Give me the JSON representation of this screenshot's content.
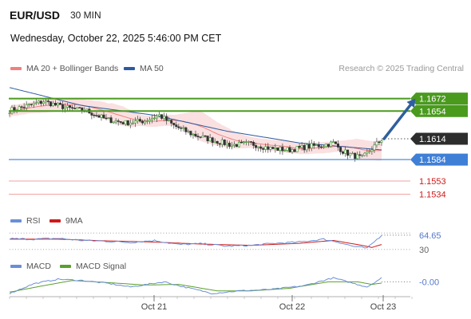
{
  "header": {
    "symbol": "EUR/USD",
    "timeframe": "30 MIN",
    "datetime": "Wednesday, October 22, 2025 5:46:00 PM CET",
    "credit": "Research © 2025 Trading Central"
  },
  "legend": {
    "bollinger": {
      "label": "MA 20 + Bollinger Bands",
      "color": "#f08080"
    },
    "ma50": {
      "label": "MA 50",
      "color": "#2c5aa0"
    },
    "rsi": {
      "label": "RSI",
      "color": "#6a8fd8"
    },
    "rsi_ma": {
      "label": "9MA",
      "color": "#d11919"
    },
    "macd": {
      "label": "MACD",
      "color": "#6a8fd8"
    },
    "macd_signal": {
      "label": "MACD Signal",
      "color": "#5aa02c"
    }
  },
  "colors": {
    "resistance": "#4a9a1e",
    "support": "#3f7fd6",
    "support_red": "#e05050",
    "arrow": "#2f5f9e",
    "current": "#2d2d2d"
  },
  "chart_data": [
    {
      "type": "candlestick",
      "x_ticks": [
        "Oct 21",
        "Oct 22",
        "Oct 23"
      ],
      "ylim": [
        1.1515,
        1.1705
      ],
      "levels": [
        {
          "label": "1.1672",
          "value": 1.1672,
          "kind": "resistance"
        },
        {
          "label": "1.1654",
          "value": 1.1654,
          "kind": "resistance"
        },
        {
          "label": "1.1614",
          "value": 1.1614,
          "kind": "current"
        },
        {
          "label": "1.1584",
          "value": 1.1584,
          "kind": "support"
        },
        {
          "label": "1.1553",
          "value": 1.1553,
          "kind": "support2"
        },
        {
          "label": "1.1534",
          "value": 1.1534,
          "kind": "support2"
        }
      ],
      "close_keypoints": [
        [
          0,
          1.1655
        ],
        [
          8,
          1.1662
        ],
        [
          14,
          1.1668
        ],
        [
          20,
          1.1662
        ],
        [
          26,
          1.1657
        ],
        [
          32,
          1.1654
        ],
        [
          40,
          1.1642
        ],
        [
          48,
          1.1637
        ],
        [
          56,
          1.164
        ],
        [
          62,
          1.1648
        ],
        [
          68,
          1.1633
        ],
        [
          76,
          1.162
        ],
        [
          84,
          1.1612
        ],
        [
          92,
          1.1605
        ],
        [
          100,
          1.1607
        ],
        [
          108,
          1.16
        ],
        [
          116,
          1.1598
        ],
        [
          124,
          1.1603
        ],
        [
          130,
          1.1605
        ],
        [
          134,
          1.1608
        ],
        [
          138,
          1.1596
        ],
        [
          142,
          1.159
        ],
        [
          146,
          1.1586
        ],
        [
          150,
          1.16
        ],
        [
          154,
          1.1613
        ]
      ],
      "ma50_keypoints": [
        [
          0,
          1.1688
        ],
        [
          30,
          1.1662
        ],
        [
          60,
          1.1648
        ],
        [
          90,
          1.1625
        ],
        [
          120,
          1.1608
        ],
        [
          154,
          1.1598
        ]
      ],
      "arrow": {
        "from": [
          155,
          1.1614
        ],
        "to": [
          168,
          1.1672
        ]
      }
    },
    {
      "type": "line",
      "name": "RSI",
      "ylim": [
        20,
        80
      ],
      "tick_labels": [
        {
          "label": "64.65",
          "value": 64.65
        },
        {
          "label": "30",
          "value": 30
        }
      ],
      "rsi_keypoints": [
        [
          0,
          56
        ],
        [
          10,
          55
        ],
        [
          20,
          57
        ],
        [
          30,
          52
        ],
        [
          40,
          50
        ],
        [
          50,
          47
        ],
        [
          60,
          52
        ],
        [
          70,
          42
        ],
        [
          80,
          44
        ],
        [
          90,
          38
        ],
        [
          100,
          40
        ],
        [
          110,
          45
        ],
        [
          120,
          48
        ],
        [
          130,
          55
        ],
        [
          136,
          48
        ],
        [
          142,
          38
        ],
        [
          148,
          33
        ],
        [
          154,
          64.65
        ]
      ],
      "ma_keypoints": [
        [
          0,
          55
        ],
        [
          20,
          55
        ],
        [
          40,
          51
        ],
        [
          60,
          48
        ],
        [
          80,
          43
        ],
        [
          100,
          40
        ],
        [
          120,
          45
        ],
        [
          134,
          52
        ],
        [
          144,
          42
        ],
        [
          150,
          35
        ],
        [
          154,
          42
        ]
      ]
    },
    {
      "type": "line",
      "name": "MACD",
      "ylim": [
        -0.0025,
        0.0012
      ],
      "tick_labels": [
        {
          "label": "-0.00",
          "value": -0.0002
        }
      ],
      "macd_keypoints": [
        [
          0,
          -0.002
        ],
        [
          10,
          -0.0005
        ],
        [
          20,
          0.0002
        ],
        [
          30,
          0.0
        ],
        [
          40,
          -0.0004
        ],
        [
          50,
          -0.001
        ],
        [
          64,
          -0.0002
        ],
        [
          70,
          -0.0008
        ],
        [
          84,
          -0.002
        ],
        [
          95,
          -0.0016
        ],
        [
          108,
          -0.0014
        ],
        [
          122,
          -0.0008
        ],
        [
          134,
          0.0004
        ],
        [
          142,
          -0.0004
        ],
        [
          148,
          -0.001
        ],
        [
          154,
          0.0004
        ]
      ],
      "signal_keypoints": [
        [
          0,
          -0.0018
        ],
        [
          14,
          -0.0008
        ],
        [
          26,
          0.0
        ],
        [
          40,
          -0.0003
        ],
        [
          56,
          -0.0007
        ],
        [
          70,
          -0.0006
        ],
        [
          86,
          -0.0016
        ],
        [
          100,
          -0.0016
        ],
        [
          116,
          -0.0012
        ],
        [
          132,
          -0.0002
        ],
        [
          144,
          -0.0002
        ],
        [
          150,
          -0.0006
        ],
        [
          154,
          -0.0004
        ]
      ]
    }
  ]
}
